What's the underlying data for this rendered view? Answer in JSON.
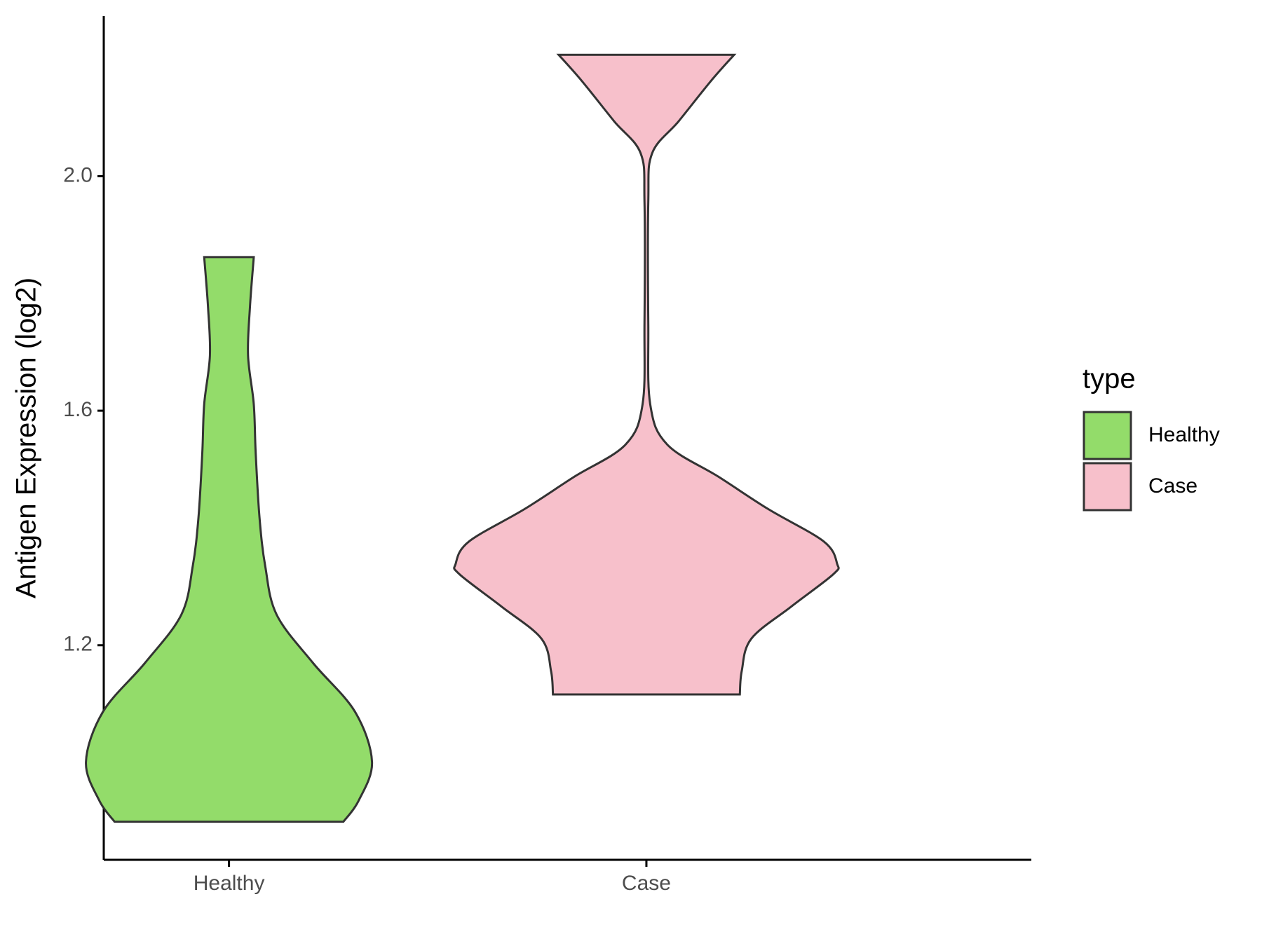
{
  "chart_data": {
    "type": "violin",
    "y_label": "Antigen Expression (log2)",
    "categories": [
      "Healthy",
      "Case"
    ],
    "legend_title": "type",
    "legend_position": "right",
    "ylim": [
      0.834,
      2.273
    ],
    "yticks": [
      {
        "value": 1.2,
        "label": "1.2"
      },
      {
        "value": 1.6,
        "label": "1.6"
      },
      {
        "value": 2.0,
        "label": "2.0"
      }
    ],
    "grid": false,
    "series": [
      {
        "name": "Healthy",
        "color": "#93dc6a",
        "y": [
          0.899,
          0.935,
          1.001,
          1.087,
          1.17,
          1.252,
          1.335,
          1.418,
          1.528,
          1.611,
          1.694,
          1.777,
          1.862
        ],
        "density": [
          0.6,
          0.68,
          0.75,
          0.66,
          0.44,
          0.25,
          0.19,
          0.16,
          0.14,
          0.13,
          0.1,
          0.11,
          0.13
        ]
      },
      {
        "name": "Case",
        "color": "#f7c0cb",
        "y": [
          1.116,
          1.156,
          1.211,
          1.266,
          1.321,
          1.339,
          1.377,
          1.432,
          1.487,
          1.542,
          1.611,
          1.749,
          1.956,
          2.039,
          2.094,
          2.163,
          2.207
        ],
        "density": [
          0.49,
          0.5,
          0.55,
          0.76,
          0.98,
          1.0,
          0.93,
          0.64,
          0.38,
          0.11,
          0.02,
          0.01,
          0.01,
          0.03,
          0.17,
          0.34,
          0.46
        ]
      }
    ]
  }
}
